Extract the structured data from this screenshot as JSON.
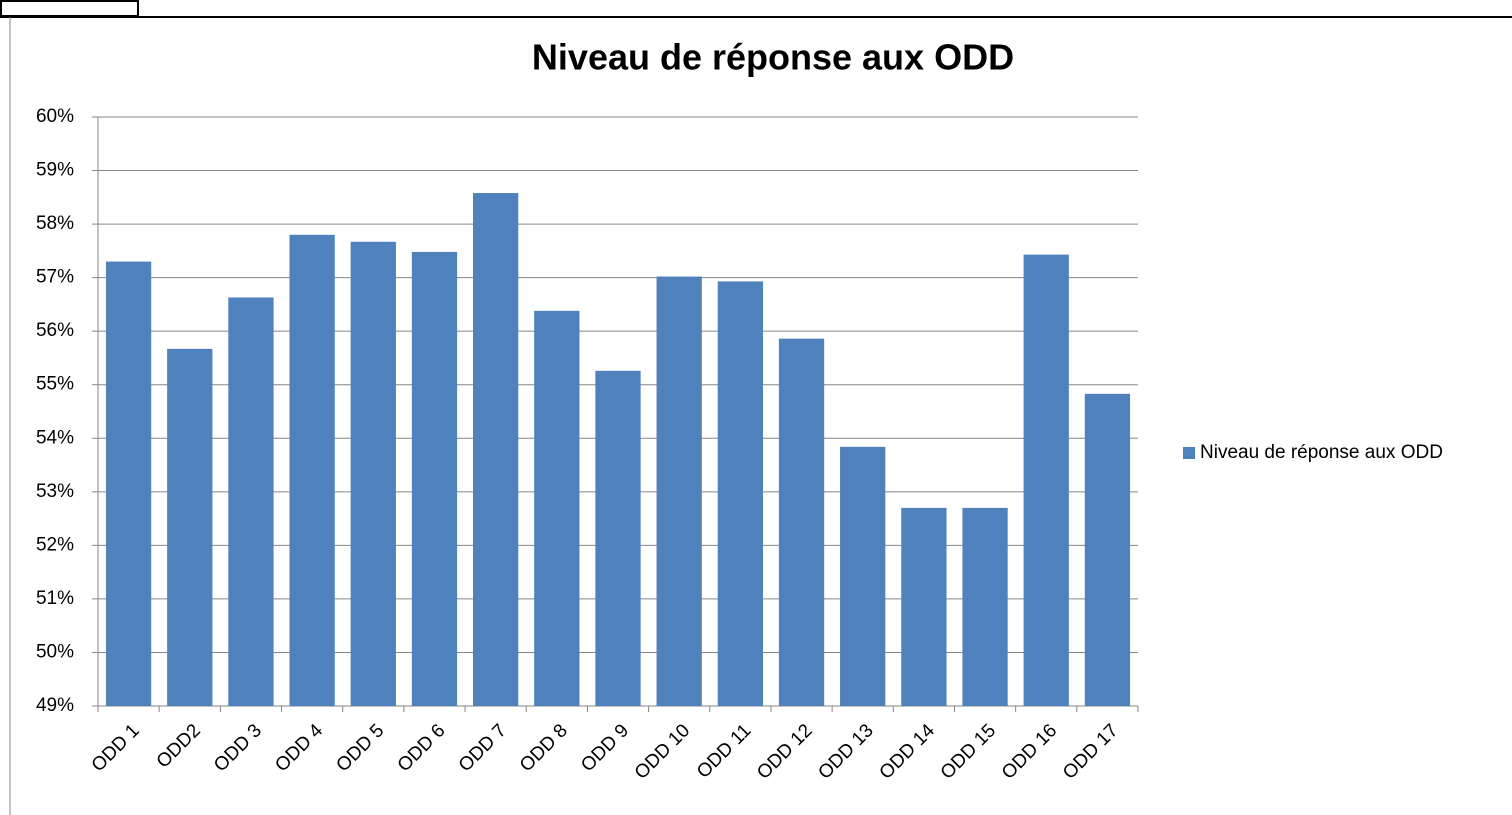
{
  "chart_data": {
    "type": "bar",
    "title": "Niveau de réponse aux ODD",
    "categories": [
      "ODD 1",
      "ODD2",
      "ODD 3",
      "ODD 4",
      "ODD 5",
      "ODD 6",
      "ODD 7",
      "ODD 8",
      "ODD 9",
      "ODD 10",
      "ODD 11",
      "ODD 12",
      "ODD 13",
      "ODD 14",
      "ODD 15",
      "ODD 16",
      "ODD 17"
    ],
    "series": [
      {
        "name": "Niveau de réponse aux ODD",
        "color": "#4f81bd",
        "values": [
          57.3,
          55.67,
          56.63,
          57.8,
          57.67,
          57.48,
          58.58,
          56.38,
          55.26,
          57.02,
          56.93,
          55.86,
          53.84,
          52.7,
          52.7,
          57.43,
          54.83
        ]
      }
    ],
    "ylim": [
      49,
      60
    ],
    "yticks": [
      {
        "value": 49,
        "label": "49%"
      },
      {
        "value": 50,
        "label": "50%"
      },
      {
        "value": 51,
        "label": "51%"
      },
      {
        "value": 52,
        "label": "52%"
      },
      {
        "value": 53,
        "label": "53%"
      },
      {
        "value": 54,
        "label": "54%"
      },
      {
        "value": 55,
        "label": "55%"
      },
      {
        "value": 56,
        "label": "56%"
      },
      {
        "value": 57,
        "label": "57%"
      },
      {
        "value": 58,
        "label": "58%"
      },
      {
        "value": 59,
        "label": "59%"
      },
      {
        "value": 60,
        "label": "60%"
      }
    ],
    "grid": true,
    "legend": "right"
  }
}
